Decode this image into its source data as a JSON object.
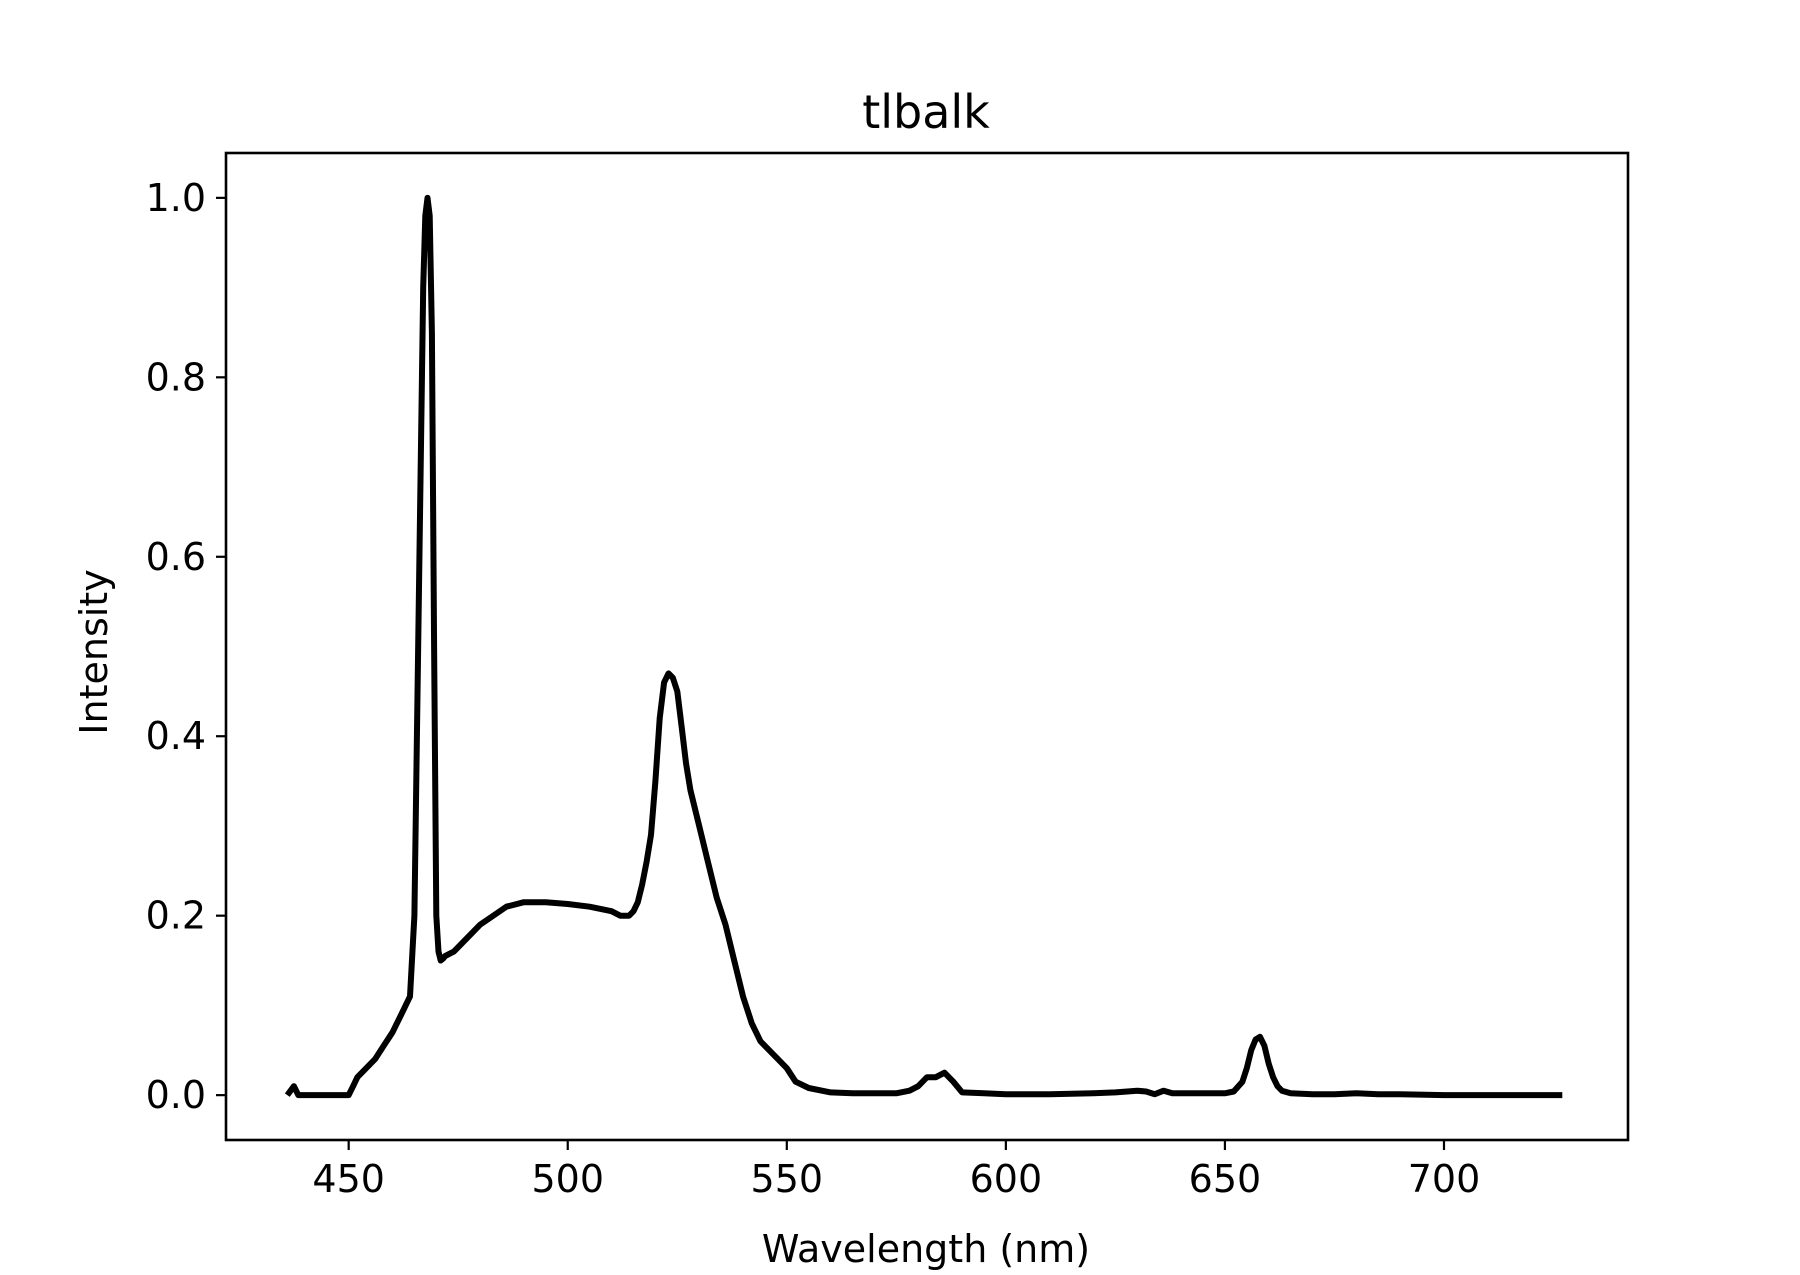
{
  "chart_data": {
    "type": "line",
    "title": "tlbalk",
    "xlabel": "Wavelength (nm)",
    "ylabel": "Intensity",
    "xlim": [
      422,
      742
    ],
    "ylim": [
      -0.05,
      1.05
    ],
    "xticks": [
      450,
      500,
      550,
      600,
      650,
      700
    ],
    "yticks": [
      0.0,
      0.2,
      0.4,
      0.6,
      0.8,
      1.0
    ],
    "xtick_labels": [
      "450",
      "500",
      "550",
      "600",
      "650",
      "700"
    ],
    "ytick_labels": [
      "0.0",
      "0.2",
      "0.4",
      "0.6",
      "0.8",
      "1.0"
    ],
    "grid": false,
    "line_color": "#000000",
    "series": [
      {
        "x": [
          436,
          437.5,
          438.5,
          440,
          445,
          450,
          451,
          452,
          454,
          456,
          458,
          460,
          462,
          464,
          465,
          466,
          467,
          467.5,
          468,
          468.5,
          469,
          469.5,
          470,
          470.5,
          471,
          471.5,
          472,
          474,
          476,
          478,
          480,
          483,
          486,
          490,
          495,
          500,
          505,
          510,
          512,
          514,
          515,
          516,
          517,
          518,
          519,
          520,
          521,
          522,
          523,
          524,
          525,
          526,
          527,
          528,
          530,
          532,
          534,
          536,
          538,
          540,
          542,
          544,
          546,
          548,
          550,
          552,
          555,
          560,
          565,
          570,
          575,
          578,
          580,
          582,
          584,
          586,
          588,
          590,
          595,
          600,
          610,
          620,
          625,
          630,
          632,
          634,
          636,
          638,
          640,
          645,
          650,
          652,
          654,
          655,
          656,
          657,
          658,
          659,
          660,
          661,
          662,
          663,
          665,
          670,
          675,
          680,
          685,
          690,
          700,
          710,
          720,
          727
        ],
        "y": [
          0.0,
          0.01,
          0.0,
          0.0,
          0.0,
          0.0,
          0.01,
          0.02,
          0.03,
          0.04,
          0.055,
          0.07,
          0.09,
          0.11,
          0.2,
          0.55,
          0.9,
          0.98,
          1.0,
          0.98,
          0.85,
          0.5,
          0.2,
          0.16,
          0.15,
          0.152,
          0.155,
          0.16,
          0.17,
          0.18,
          0.19,
          0.2,
          0.21,
          0.215,
          0.215,
          0.213,
          0.21,
          0.205,
          0.2,
          0.2,
          0.205,
          0.215,
          0.235,
          0.26,
          0.29,
          0.35,
          0.42,
          0.46,
          0.47,
          0.465,
          0.45,
          0.41,
          0.37,
          0.34,
          0.3,
          0.26,
          0.22,
          0.19,
          0.15,
          0.11,
          0.08,
          0.06,
          0.05,
          0.04,
          0.03,
          0.015,
          0.008,
          0.003,
          0.002,
          0.002,
          0.002,
          0.005,
          0.01,
          0.02,
          0.02,
          0.025,
          0.015,
          0.003,
          0.002,
          0.001,
          0.001,
          0.002,
          0.003,
          0.005,
          0.004,
          0.001,
          0.005,
          0.002,
          0.002,
          0.002,
          0.002,
          0.004,
          0.015,
          0.03,
          0.05,
          0.062,
          0.065,
          0.055,
          0.035,
          0.02,
          0.01,
          0.005,
          0.002,
          0.001,
          0.001,
          0.002,
          0.001,
          0.001,
          0.0,
          0.0,
          0.0,
          0.0
        ]
      }
    ]
  }
}
